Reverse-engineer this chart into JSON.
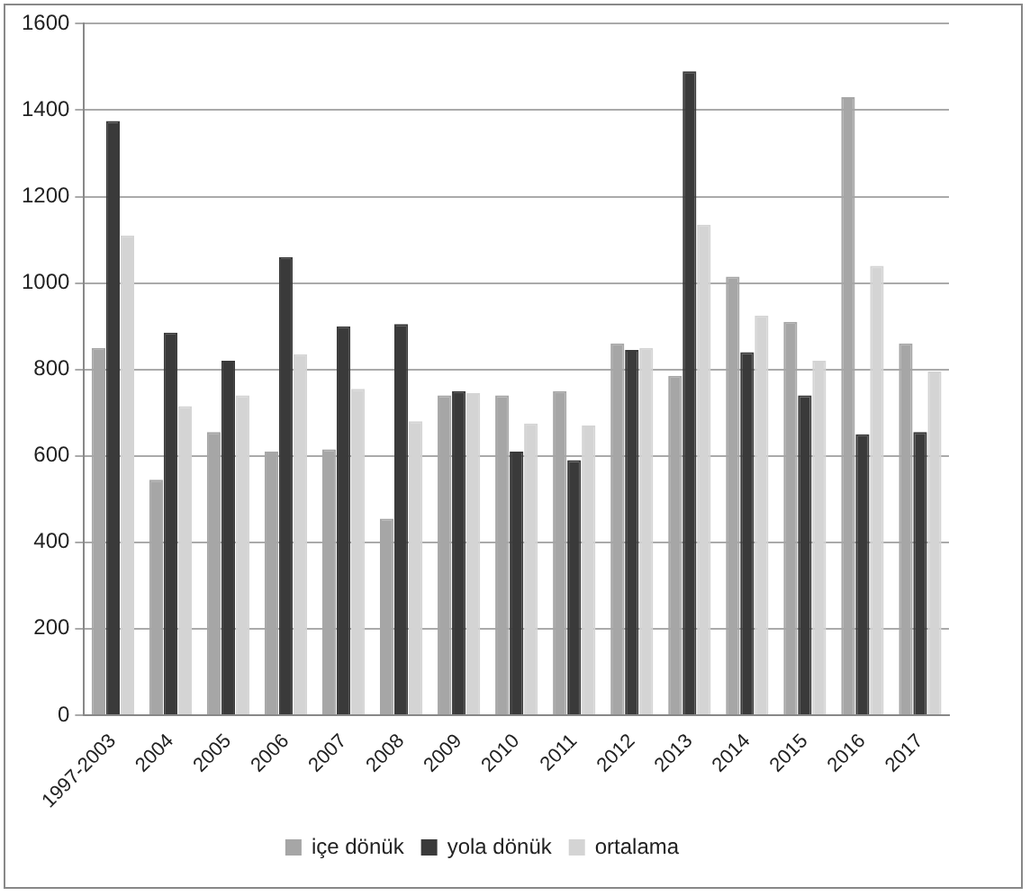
{
  "chart_data": {
    "type": "bar",
    "categories": [
      "1997-2003",
      "2004",
      "2005",
      "2006",
      "2007",
      "2008",
      "2009",
      "2010",
      "2011",
      "2012",
      "2013",
      "2014",
      "2015",
      "2016",
      "2017"
    ],
    "series": [
      {
        "name": "içe dönük",
        "color": "#a6a6a6",
        "values": [
          850,
          545,
          655,
          610,
          615,
          455,
          740,
          740,
          750,
          860,
          785,
          1015,
          910,
          1430,
          860
        ]
      },
      {
        "name": "yola dönük",
        "color": "#3a3a3a",
        "values": [
          1375,
          885,
          820,
          1060,
          900,
          905,
          750,
          610,
          590,
          845,
          1490,
          840,
          740,
          650,
          655
        ]
      },
      {
        "name": "ortalama",
        "color": "#d4d4d4",
        "values": [
          1110,
          715,
          740,
          835,
          755,
          680,
          745,
          675,
          670,
          850,
          1135,
          925,
          820,
          1040,
          795
        ]
      }
    ],
    "ylim": [
      0,
      1600
    ],
    "yticks": [
      0,
      200,
      400,
      600,
      800,
      1000,
      1200,
      1400,
      1600
    ],
    "grid": "y",
    "legend": "bottom"
  }
}
